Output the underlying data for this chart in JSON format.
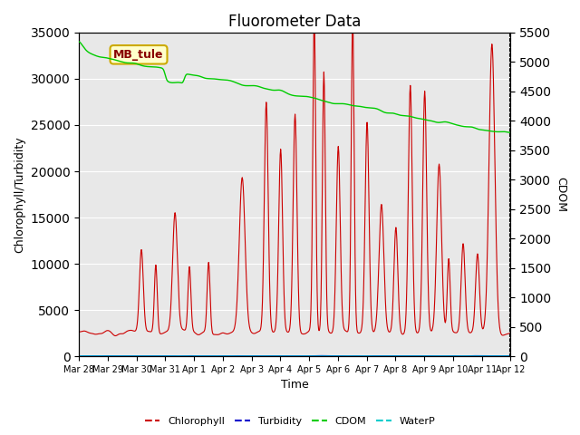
{
  "title": "Fluorometer Data",
  "xlabel": "Time",
  "ylabel_left": "Chlorophyll/Turbidity",
  "ylabel_right": "CDOM",
  "annotation": "MB_tule",
  "ylim_left": [
    0,
    35000
  ],
  "ylim_right": [
    0,
    5500
  ],
  "yticks_left": [
    0,
    5000,
    10000,
    15000,
    20000,
    25000,
    30000,
    35000
  ],
  "yticks_right": [
    0,
    500,
    1000,
    1500,
    2000,
    2500,
    3000,
    3500,
    4000,
    4500,
    5000,
    5500
  ],
  "background_color": "#ffffff",
  "plot_bg_color": "#e8e8e8",
  "chlorophyll_color": "#cc0000",
  "turbidity_color": "#0000cc",
  "cdom_color": "#00cc00",
  "waterp_color": "#00cccc",
  "legend_dash_colors": [
    "#cc0000",
    "#0000cc",
    "#00cc00",
    "#00cccc"
  ],
  "legend_labels": [
    "Chlorophyll",
    "Turbidity",
    "CDOM",
    "WaterP"
  ],
  "grid_color": "#ffffff",
  "n_points": 900,
  "x_start": 0,
  "x_end": 15.0,
  "xtick_positions": [
    0,
    1,
    2,
    3,
    4,
    5,
    6,
    7,
    8,
    9,
    10,
    11,
    12,
    13,
    14,
    15
  ],
  "xtick_labels": [
    "Mar 28",
    "Mar 29",
    "Mar 30",
    "Mar 31",
    "Apr 1",
    "Apr 2",
    "Apr 3",
    "Apr 4",
    "Apr 5",
    "Apr 6",
    "Apr 7",
    "Apr 8",
    "Apr 9",
    "Apr 10",
    "Apr 11",
    "Apr 12"
  ]
}
